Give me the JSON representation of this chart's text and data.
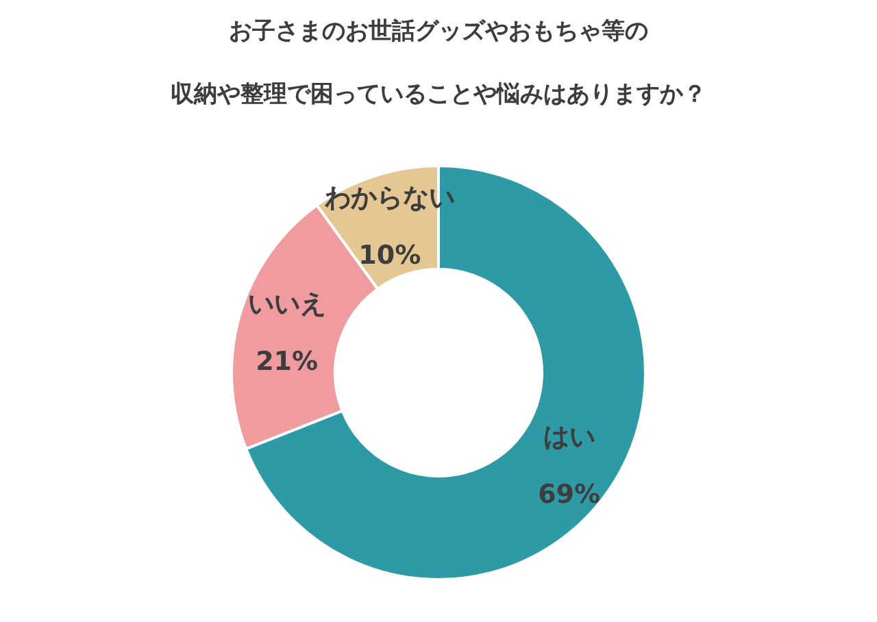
{
  "chart_data": {
    "type": "donut",
    "title": "お子さまのお世話グッズやおもちゃ等の",
    "subtitle": "収納や整理で困っていることや悩みはありますか？",
    "categories": [
      "はい",
      "いいえ",
      "わからない"
    ],
    "values": [
      69,
      21,
      10
    ],
    "value_labels": [
      "69%",
      "21%",
      "10%"
    ],
    "colors": [
      "#2e9aa5",
      "#ef9ba0",
      "#e5c794"
    ],
    "legend": false
  }
}
